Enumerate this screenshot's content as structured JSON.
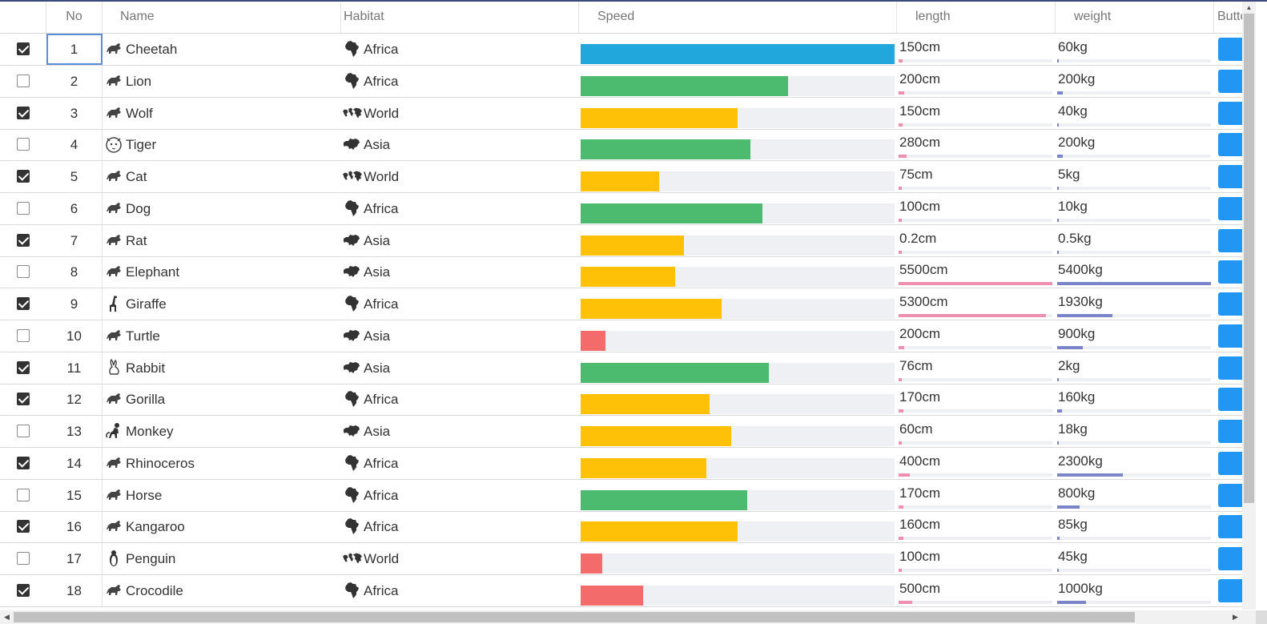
{
  "columns": {
    "no": "No",
    "name": "Name",
    "habitat": "Habitat",
    "speed": "Speed",
    "length": "length",
    "weight": "weight",
    "button": "Button"
  },
  "colors": {
    "speed_high": "#22a7dc",
    "speed_good": "#4cba6f",
    "speed_mid": "#ffc107",
    "speed_low": "#f36b6b",
    "length_bar": "#ef8fb0",
    "weight_bar": "#7b85c9",
    "button": "#2196f3"
  },
  "rows": [
    {
      "checked": true,
      "no": "1",
      "name": "Cheetah",
      "icon": "cheetah-icon",
      "habitat": "Africa",
      "habitat_icon": "africa-icon",
      "speed": 1.0,
      "length": "150cm",
      "length_fill": 0.027,
      "weight": "60kg",
      "weight_fill": 0.011
    },
    {
      "checked": false,
      "no": "2",
      "name": "Lion",
      "icon": "lion-icon",
      "habitat": "Africa",
      "habitat_icon": "africa-icon",
      "speed": 0.66,
      "length": "200cm",
      "length_fill": 0.036,
      "weight": "200kg",
      "weight_fill": 0.037
    },
    {
      "checked": true,
      "no": "3",
      "name": "Wolf",
      "icon": "wolf-icon",
      "habitat": "World",
      "habitat_icon": "world-icon",
      "speed": 0.5,
      "length": "150cm",
      "length_fill": 0.027,
      "weight": "40kg",
      "weight_fill": 0.007
    },
    {
      "checked": false,
      "no": "4",
      "name": "Tiger",
      "icon": "tiger-icon",
      "habitat": "Asia",
      "habitat_icon": "asia-icon",
      "speed": 0.54,
      "length": "280cm",
      "length_fill": 0.051,
      "weight": "200kg",
      "weight_fill": 0.037
    },
    {
      "checked": true,
      "no": "5",
      "name": "Cat",
      "icon": "cat-icon",
      "habitat": "World",
      "habitat_icon": "world-icon",
      "speed": 0.25,
      "length": "75cm",
      "length_fill": 0.014,
      "weight": "5kg",
      "weight_fill": 0.001
    },
    {
      "checked": false,
      "no": "6",
      "name": "Dog",
      "icon": "dog-icon",
      "habitat": "Africa",
      "habitat_icon": "africa-icon",
      "speed": 0.58,
      "length": "100cm",
      "length_fill": 0.018,
      "weight": "10kg",
      "weight_fill": 0.002
    },
    {
      "checked": true,
      "no": "7",
      "name": "Rat",
      "icon": "rat-icon",
      "habitat": "Asia",
      "habitat_icon": "asia-icon",
      "speed": 0.33,
      "length": "0.2cm",
      "length_fill": 0.001,
      "weight": "0.5kg",
      "weight_fill": 0.001
    },
    {
      "checked": false,
      "no": "8",
      "name": "Elephant",
      "icon": "elephant-icon",
      "habitat": "Asia",
      "habitat_icon": "asia-icon",
      "speed": 0.3,
      "length": "5500cm",
      "length_fill": 1.0,
      "weight": "5400kg",
      "weight_fill": 1.0
    },
    {
      "checked": true,
      "no": "9",
      "name": "Giraffe",
      "icon": "giraffe-icon",
      "habitat": "Africa",
      "habitat_icon": "africa-icon",
      "speed": 0.45,
      "length": "5300cm",
      "length_fill": 0.96,
      "weight": "1930kg",
      "weight_fill": 0.357
    },
    {
      "checked": false,
      "no": "10",
      "name": "Turtle",
      "icon": "turtle-icon",
      "habitat": "Asia",
      "habitat_icon": "asia-icon",
      "speed": 0.08,
      "length": "200cm",
      "length_fill": 0.036,
      "weight": "900kg",
      "weight_fill": 0.167
    },
    {
      "checked": true,
      "no": "11",
      "name": "Rabbit",
      "icon": "rabbit-icon",
      "habitat": "Asia",
      "habitat_icon": "asia-icon",
      "speed": 0.6,
      "length": "76cm",
      "length_fill": 0.014,
      "weight": "2kg",
      "weight_fill": 0.001
    },
    {
      "checked": true,
      "no": "12",
      "name": "Gorilla",
      "icon": "gorilla-icon",
      "habitat": "Africa",
      "habitat_icon": "africa-icon",
      "speed": 0.41,
      "length": "170cm",
      "length_fill": 0.031,
      "weight": "160kg",
      "weight_fill": 0.03
    },
    {
      "checked": false,
      "no": "13",
      "name": "Monkey",
      "icon": "monkey-icon",
      "habitat": "Asia",
      "habitat_icon": "asia-icon",
      "speed": 0.48,
      "length": "60cm",
      "length_fill": 0.011,
      "weight": "18kg",
      "weight_fill": 0.003
    },
    {
      "checked": true,
      "no": "14",
      "name": "Rhinoceros",
      "icon": "rhinoceros-icon",
      "habitat": "Africa",
      "habitat_icon": "africa-icon",
      "speed": 0.4,
      "length": "400cm",
      "length_fill": 0.073,
      "weight": "2300kg",
      "weight_fill": 0.426
    },
    {
      "checked": false,
      "no": "15",
      "name": "Horse",
      "icon": "horse-icon",
      "habitat": "Africa",
      "habitat_icon": "africa-icon",
      "speed": 0.53,
      "length": "170cm",
      "length_fill": 0.031,
      "weight": "800kg",
      "weight_fill": 0.148
    },
    {
      "checked": true,
      "no": "16",
      "name": "Kangaroo",
      "icon": "kangaroo-icon",
      "habitat": "Africa",
      "habitat_icon": "africa-icon",
      "speed": 0.5,
      "length": "160cm",
      "length_fill": 0.029,
      "weight": "85kg",
      "weight_fill": 0.016
    },
    {
      "checked": false,
      "no": "17",
      "name": "Penguin",
      "icon": "penguin-icon",
      "habitat": "World",
      "habitat_icon": "world-icon",
      "speed": 0.07,
      "length": "100cm",
      "length_fill": 0.018,
      "weight": "45kg",
      "weight_fill": 0.008
    },
    {
      "checked": true,
      "no": "18",
      "name": "Crocodile",
      "icon": "crocodile-icon",
      "habitat": "Africa",
      "habitat_icon": "africa-icon",
      "speed": 0.2,
      "length": "500cm",
      "length_fill": 0.091,
      "weight": "1000kg",
      "weight_fill": 0.185
    }
  ]
}
